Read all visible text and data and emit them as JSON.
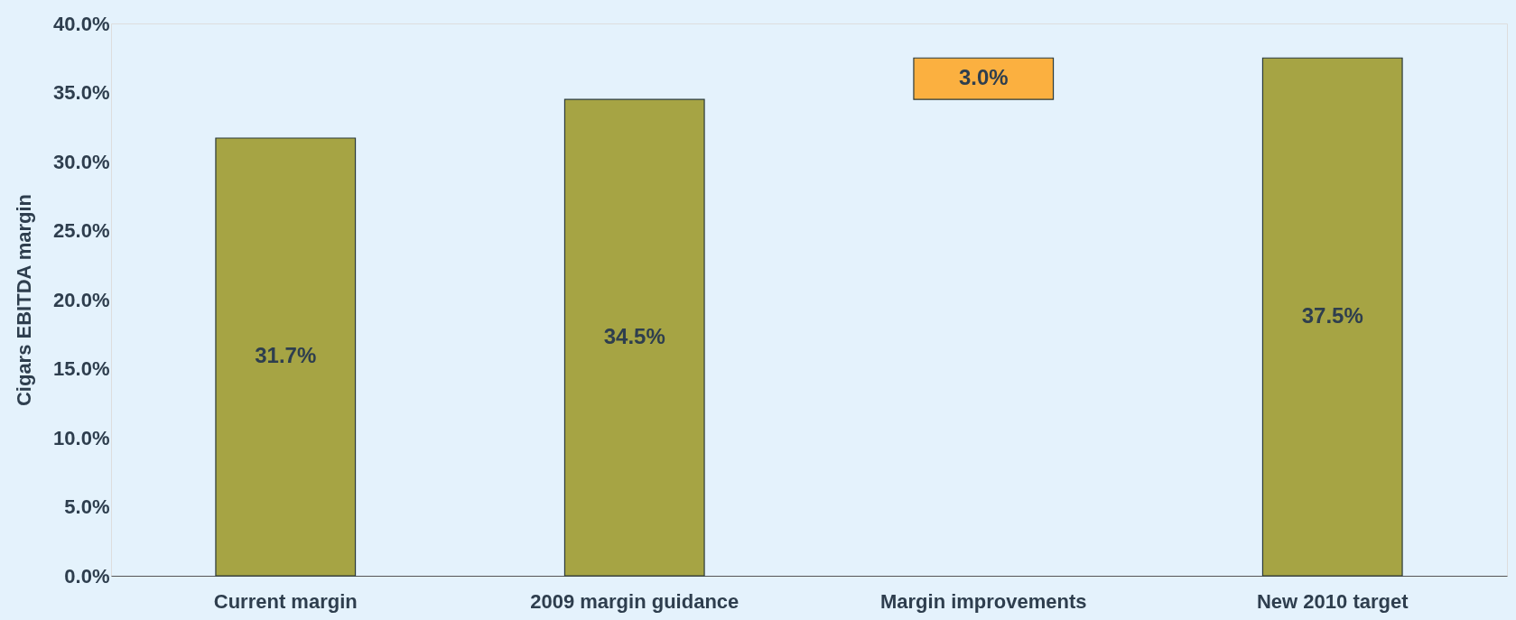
{
  "chart_data": {
    "type": "bar",
    "ylabel": "Cigars EBITDA margin",
    "categories": [
      "Current margin",
      "2009 margin guidance",
      "Margin improvements",
      "New 2010 target"
    ],
    "values": [
      31.7,
      34.5,
      3.0,
      37.5
    ],
    "base": [
      0,
      0,
      34.5,
      0
    ],
    "colors": [
      "#a6a444",
      "#a6a444",
      "#fbb040",
      "#a6a444"
    ],
    "value_labels": [
      "31.7%",
      "34.5%",
      "3.0%",
      "37.5%"
    ],
    "ylim": [
      0,
      40
    ],
    "yticks": [
      {
        "value": 0,
        "label": "0.0%"
      },
      {
        "value": 5,
        "label": "5.0%"
      },
      {
        "value": 10,
        "label": "10.0%"
      },
      {
        "value": 15,
        "label": "15.0%"
      },
      {
        "value": 20,
        "label": "20.0%"
      },
      {
        "value": 25,
        "label": "25.0%"
      },
      {
        "value": 30,
        "label": "30.0%"
      },
      {
        "value": 35,
        "label": "35.0%"
      },
      {
        "value": 40,
        "label": "40.0%"
      }
    ],
    "grid": false
  }
}
